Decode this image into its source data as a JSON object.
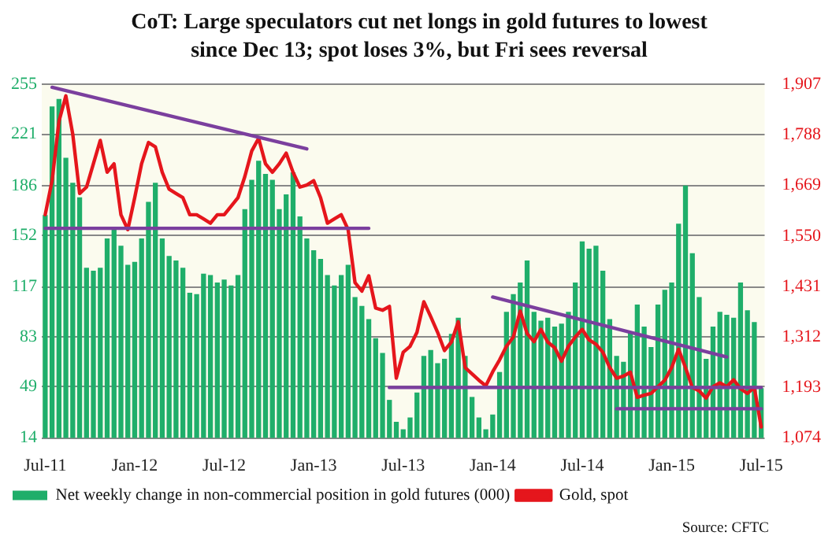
{
  "chart_data": {
    "type": "bar",
    "title": "CoT: Large speculators cut net longs in gold futures to lowest since Dec 13; spot loses 3%, but Fri sees reversal",
    "categories": [
      "Jul-11",
      null,
      null,
      null,
      null,
      null,
      null,
      null,
      null,
      null,
      null,
      null,
      null,
      "Jan-12",
      null,
      null,
      null,
      null,
      null,
      null,
      null,
      null,
      null,
      null,
      null,
      null,
      "Jul-12",
      null,
      null,
      null,
      null,
      null,
      null,
      null,
      null,
      null,
      null,
      null,
      null,
      "Jan-13",
      null,
      null,
      null,
      null,
      null,
      null,
      null,
      null,
      null,
      null,
      null,
      null,
      "Jul-13",
      null,
      null,
      null,
      null,
      null,
      null,
      null,
      null,
      null,
      null,
      null,
      null,
      "Jan-14",
      null,
      null,
      null,
      null,
      null,
      null,
      null,
      null,
      null,
      null,
      null,
      null,
      "Jul-14",
      null,
      null,
      null,
      null,
      null,
      null,
      null,
      null,
      null,
      null,
      null,
      null,
      "Jan-15",
      null,
      null,
      null,
      null,
      null,
      null,
      null,
      null,
      null,
      null,
      null,
      null,
      "Jul-15"
    ],
    "series": [
      {
        "name": "Net weekly change in non-commercial position in gold futures (000)",
        "color": "#1fae6a",
        "values": [
          166,
          240,
          245,
          205,
          188,
          178,
          130,
          128,
          130,
          150,
          156,
          145,
          132,
          134,
          150,
          175,
          188,
          150,
          138,
          135,
          130,
          113,
          112,
          126,
          125,
          120,
          122,
          118,
          125,
          170,
          190,
          203,
          194,
          190,
          170,
          180,
          195,
          165,
          150,
          142,
          136,
          125,
          118,
          125,
          132,
          110,
          104,
          95,
          82,
          72,
          40,
          25,
          20,
          28,
          45,
          70,
          74,
          65,
          68,
          85,
          96,
          70,
          42,
          28,
          20,
          30,
          59,
          100,
          112,
          120,
          135,
          100,
          94,
          96,
          90,
          92,
          100,
          120,
          148,
          143,
          145,
          128,
          95,
          70,
          66,
          86,
          105,
          90,
          76,
          105,
          115,
          120,
          160,
          186,
          140,
          110,
          68,
          90,
          100,
          98,
          96,
          120,
          101,
          93,
          48
        ]
      },
      {
        "name": "Gold, spot",
        "type": "line",
        "axis": "y2",
        "color": "#e5161c",
        "values": [
          1600,
          1680,
          1820,
          1880,
          1790,
          1650,
          1665,
          1720,
          1775,
          1700,
          1720,
          1600,
          1565,
          1640,
          1720,
          1770,
          1760,
          1700,
          1660,
          1650,
          1640,
          1600,
          1600,
          1590,
          1580,
          1600,
          1600,
          1620,
          1640,
          1690,
          1750,
          1780,
          1720,
          1700,
          1720,
          1745,
          1700,
          1665,
          1670,
          1680,
          1640,
          1580,
          1590,
          1600,
          1565,
          1440,
          1420,
          1456,
          1380,
          1375,
          1384,
          1215,
          1276,
          1290,
          1323,
          1395,
          1360,
          1323,
          1280,
          1300,
          1348,
          1240,
          1225,
          1210,
          1197,
          1230,
          1258,
          1290,
          1312,
          1373,
          1320,
          1301,
          1330,
          1300,
          1287,
          1255,
          1290,
          1312,
          1330,
          1305,
          1295,
          1276,
          1240,
          1215,
          1220,
          1229,
          1170,
          1175,
          1179,
          1195,
          1210,
          1240,
          1283,
          1240,
          1193,
          1185,
          1168,
          1195,
          1204,
          1195,
          1211,
          1190,
          1179,
          1193,
          1100
        ]
      },
      {
        "type": "line",
        "axis": "y2",
        "color": "#7b3f9e",
        "values": [
          null,
          1900,
          null,
          null,
          null,
          null,
          null,
          null,
          null,
          null,
          null,
          null,
          null,
          null,
          null,
          null,
          null,
          null,
          null,
          null,
          null,
          null,
          null,
          null,
          null,
          null,
          null,
          null,
          null,
          null,
          null,
          null,
          null,
          null,
          null,
          null,
          null,
          null,
          1755,
          null,
          null,
          null,
          null,
          null,
          null,
          null,
          null,
          null,
          null,
          null,
          null,
          null,
          null,
          null,
          null,
          null,
          null,
          null,
          null,
          null,
          null,
          null,
          null,
          null,
          null,
          null,
          null,
          null,
          null,
          null,
          null,
          null,
          null,
          null,
          null,
          null,
          null,
          null,
          null,
          null,
          null,
          null,
          null,
          null,
          null,
          null,
          null,
          null,
          null,
          null,
          null,
          null,
          null,
          null,
          null,
          null,
          null,
          null,
          null,
          null,
          null,
          null,
          null,
          null,
          null
        ]
      },
      {
        "type": "line",
        "axis": "y2",
        "color": "#7b3f9e",
        "values": [
          1568,
          null,
          null,
          null,
          null,
          null,
          null,
          null,
          null,
          null,
          null,
          null,
          null,
          null,
          null,
          null,
          null,
          null,
          null,
          null,
          null,
          null,
          null,
          null,
          null,
          null,
          null,
          null,
          null,
          null,
          null,
          null,
          null,
          null,
          null,
          null,
          null,
          null,
          null,
          null,
          null,
          null,
          null,
          null,
          null,
          null,
          null,
          1568,
          null,
          null,
          null,
          null,
          null,
          null,
          null,
          null,
          null,
          null,
          null,
          null,
          null,
          null,
          null,
          null,
          null,
          null,
          null,
          null,
          null,
          null,
          null,
          null,
          null,
          null,
          null,
          null,
          null,
          null,
          null,
          null,
          null,
          null,
          null,
          null,
          null,
          null,
          null,
          null,
          null,
          null,
          null,
          null,
          null,
          null,
          null,
          null,
          null,
          null,
          null,
          null,
          null,
          null,
          null,
          null,
          null
        ]
      },
      {
        "type": "line",
        "axis": "y2",
        "color": "#7b3f9e",
        "values": [
          null,
          null,
          null,
          null,
          null,
          null,
          null,
          null,
          null,
          null,
          null,
          null,
          null,
          null,
          null,
          null,
          null,
          null,
          null,
          null,
          null,
          null,
          null,
          null,
          null,
          null,
          null,
          null,
          null,
          null,
          null,
          null,
          null,
          null,
          null,
          null,
          null,
          null,
          null,
          null,
          null,
          null,
          null,
          null,
          null,
          null,
          null,
          null,
          null,
          null,
          1193,
          null,
          null,
          null,
          null,
          null,
          null,
          null,
          null,
          null,
          null,
          null,
          null,
          null,
          null,
          null,
          null,
          null,
          null,
          null,
          null,
          null,
          null,
          null,
          null,
          null,
          null,
          null,
          null,
          null,
          null,
          null,
          null,
          null,
          null,
          null,
          null,
          null,
          null,
          null,
          null,
          null,
          null,
          null,
          null,
          null,
          null,
          null,
          null,
          null,
          null,
          null,
          null,
          null,
          1193
        ]
      },
      {
        "type": "line",
        "axis": "y2",
        "color": "#7b3f9e",
        "values": [
          null,
          null,
          null,
          null,
          null,
          null,
          null,
          null,
          null,
          null,
          null,
          null,
          null,
          null,
          null,
          null,
          null,
          null,
          null,
          null,
          null,
          null,
          null,
          null,
          null,
          null,
          null,
          null,
          null,
          null,
          null,
          null,
          null,
          null,
          null,
          null,
          null,
          null,
          null,
          null,
          null,
          null,
          null,
          null,
          null,
          null,
          null,
          null,
          null,
          null,
          null,
          null,
          null,
          null,
          null,
          null,
          null,
          null,
          null,
          null,
          null,
          null,
          null,
          null,
          null,
          1406,
          null,
          null,
          null,
          null,
          null,
          null,
          null,
          null,
          null,
          null,
          null,
          null,
          null,
          null,
          null,
          null,
          null,
          null,
          null,
          null,
          null,
          null,
          null,
          null,
          null,
          null,
          null,
          null,
          null,
          null,
          null,
          null,
          null,
          1265,
          null,
          null,
          null,
          null,
          null
        ]
      },
      {
        "type": "line",
        "axis": "y2",
        "color": "#7b3f9e",
        "values": [
          null,
          null,
          null,
          null,
          null,
          null,
          null,
          null,
          null,
          null,
          null,
          null,
          null,
          null,
          null,
          null,
          null,
          null,
          null,
          null,
          null,
          null,
          null,
          null,
          null,
          null,
          null,
          null,
          null,
          null,
          null,
          null,
          null,
          null,
          null,
          null,
          null,
          null,
          null,
          null,
          null,
          null,
          null,
          null,
          null,
          null,
          null,
          null,
          null,
          null,
          null,
          null,
          null,
          null,
          null,
          null,
          null,
          null,
          null,
          null,
          null,
          null,
          null,
          null,
          null,
          null,
          null,
          null,
          null,
          null,
          null,
          null,
          null,
          null,
          null,
          null,
          null,
          null,
          null,
          null,
          null,
          null,
          null,
          1143,
          null,
          null,
          null,
          null,
          null,
          null,
          null,
          null,
          null,
          null,
          null,
          null,
          null,
          null,
          null,
          null,
          null,
          null,
          null,
          null,
          1143
        ]
      }
    ],
    "ylim": [
      14,
      255
    ],
    "yticks": [
      14,
      49,
      83,
      117,
      152,
      186,
      221,
      255
    ],
    "y2lim": [
      1074,
      1907
    ],
    "y2ticks": [
      {
        "value": 1074,
        "label": "1,074"
      },
      {
        "value": 1193,
        "label": "1,193"
      },
      {
        "value": 1312,
        "label": "1,312"
      },
      {
        "value": 1431,
        "label": "1,431"
      },
      {
        "value": 1550,
        "label": "1,550"
      },
      {
        "value": 1669,
        "label": "1,669"
      },
      {
        "value": 1788,
        "label": "1,788"
      },
      {
        "value": 1907,
        "label": "1,907"
      }
    ],
    "grid": "y",
    "legend": "bottom",
    "annotations": [
      "Source: CFTC"
    ]
  }
}
